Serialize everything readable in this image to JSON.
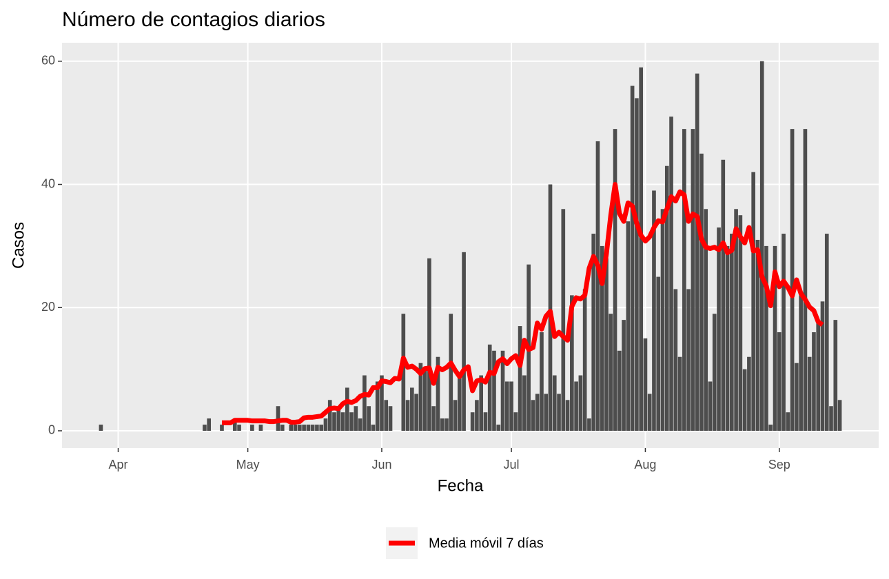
{
  "chart_data": {
    "type": "bar",
    "title": "Número de contagios diarios",
    "x_label": "Fecha",
    "y_label": "Casos",
    "xlim": [
      78,
      267
    ],
    "ylim": [
      -2.8,
      63
    ],
    "xticks": [
      {
        "value": 91,
        "label": "Apr"
      },
      {
        "value": 121,
        "label": "May"
      },
      {
        "value": 152,
        "label": "Jun"
      },
      {
        "value": 182,
        "label": "Jul"
      },
      {
        "value": 213,
        "label": "Aug"
      },
      {
        "value": 244,
        "label": "Sep"
      }
    ],
    "yticks": [
      0,
      20,
      40,
      60
    ],
    "grid": true,
    "legend": "bottom",
    "series": [
      {
        "type": "bar",
        "color": "#4d4d4d",
        "x": [
          87,
          111,
          112,
          115,
          118,
          119,
          122,
          124,
          128,
          129,
          131,
          132,
          133,
          134,
          135,
          136,
          137,
          138,
          139,
          140,
          141,
          142,
          143,
          144,
          145,
          146,
          147,
          148,
          149,
          150,
          151,
          152,
          153,
          154,
          155,
          156,
          157,
          158,
          159,
          160,
          161,
          162,
          163,
          164,
          165,
          166,
          167,
          168,
          169,
          170,
          171,
          172,
          173,
          174,
          175,
          176,
          177,
          178,
          179,
          180,
          181,
          182,
          183,
          184,
          185,
          186,
          187,
          188,
          189,
          190,
          191,
          192,
          193,
          194,
          195,
          196,
          197,
          198,
          199,
          200,
          201,
          202,
          203,
          204,
          205,
          206,
          207,
          208,
          209,
          210,
          211,
          212,
          213,
          214,
          215,
          216,
          217,
          218,
          219,
          220,
          221,
          222,
          223,
          224,
          225,
          226,
          227,
          228,
          229,
          230,
          231,
          232,
          233,
          234,
          235,
          236,
          237,
          238,
          239,
          240,
          241,
          242,
          243,
          244,
          245,
          246,
          247,
          248,
          249,
          250,
          251,
          252,
          253,
          254,
          255,
          256,
          257,
          258
        ],
        "values": [
          1,
          1,
          2,
          1,
          2,
          1,
          1,
          1,
          4,
          1,
          1,
          1,
          1,
          1,
          1,
          1,
          1,
          1,
          2,
          5,
          3,
          4,
          3,
          7,
          3,
          4,
          2,
          9,
          4,
          1,
          8,
          9,
          5,
          4,
          0,
          0,
          19,
          5,
          7,
          6,
          11,
          10,
          28,
          4,
          12,
          2,
          2,
          19,
          5,
          9,
          29,
          0,
          3,
          5,
          9,
          3,
          14,
          13,
          1,
          13,
          8,
          8,
          3,
          17,
          9,
          27,
          5,
          6,
          16,
          6,
          40,
          9,
          6,
          36,
          5,
          22,
          8,
          9,
          23,
          2,
          32,
          47,
          30,
          28,
          19,
          49,
          13,
          18,
          34,
          56,
          54,
          59,
          15,
          6,
          39,
          25,
          36,
          43,
          51,
          23,
          12,
          49,
          23,
          49,
          58,
          45,
          36,
          8,
          19,
          33,
          44,
          30,
          32,
          36,
          35,
          10,
          12,
          42,
          31,
          60,
          30,
          1,
          30,
          16,
          32,
          3,
          49,
          11,
          22,
          49,
          12,
          16,
          18,
          21,
          32,
          4,
          18,
          5
        ]
      },
      {
        "type": "line",
        "name": "Media móvil 7 días",
        "color": "#ff0000",
        "x": [
          115,
          116,
          117,
          118,
          119,
          120,
          121,
          122,
          123,
          124,
          125,
          126,
          127,
          128,
          129,
          130,
          131,
          132,
          133,
          134,
          135,
          136,
          137,
          138,
          139,
          140,
          141,
          142,
          143,
          144,
          145,
          146,
          147,
          148,
          149,
          150,
          151,
          152,
          153,
          154,
          155,
          156,
          157,
          158,
          159,
          160,
          161,
          162,
          163,
          164,
          165,
          166,
          167,
          168,
          169,
          170,
          171,
          172,
          173,
          174,
          175,
          176,
          177,
          178,
          179,
          180,
          181,
          182,
          183,
          184,
          185,
          186,
          187,
          188,
          189,
          190,
          191,
          192,
          193,
          194,
          195,
          196,
          197,
          198,
          199,
          200,
          201,
          202,
          203,
          204,
          205,
          206,
          207,
          208,
          209,
          210,
          211,
          212,
          213,
          214,
          215,
          216,
          217,
          218,
          219,
          220,
          221,
          222,
          223,
          224,
          225,
          226,
          227,
          228,
          229,
          230,
          231,
          232,
          233,
          234,
          235,
          236,
          237,
          238,
          239,
          240,
          241,
          242,
          243,
          244,
          245,
          246,
          247,
          248,
          249,
          250,
          251,
          252,
          253,
          254
        ],
        "values": [
          1.3,
          1.3,
          1.3,
          1.7,
          1.7,
          1.7,
          1.7,
          1.6,
          1.6,
          1.6,
          1.6,
          1.5,
          1.5,
          1.6,
          1.7,
          1.7,
          1.4,
          1.4,
          1.5,
          2.1,
          2.2,
          2.2,
          2.3,
          2.4,
          3.0,
          3.6,
          3.7,
          3.6,
          4.4,
          4.8,
          4.6,
          4.9,
          5.6,
          5.9,
          5.8,
          7.0,
          7.0,
          8.1,
          8.0,
          7.8,
          8.5,
          8.4,
          11.8,
          10.3,
          10.5,
          10.0,
          9.3,
          10.1,
          10.2,
          7.7,
          10.3,
          9.9,
          10.3,
          11.0,
          9.8,
          8.8,
          9.9,
          10.4,
          6.5,
          8.1,
          8.3,
          7.9,
          9.5,
          9.3,
          11.2,
          11.7,
          10.9,
          11.7,
          12.2,
          10.6,
          14.7,
          13.2,
          13.5,
          17.5,
          16.5,
          18.6,
          19.4,
          15.3,
          16.0,
          15.3,
          14.7,
          20.2,
          21.6,
          21.4,
          22.0,
          26.4,
          28.3,
          26.9,
          23.9,
          28.8,
          35.0,
          40.0,
          35.3,
          34.0,
          37.0,
          36.5,
          33.7,
          31.7,
          30.8,
          31.5,
          33.0,
          34.1,
          33.9,
          36.0,
          38.0,
          37.3,
          38.8,
          38.3,
          34.0,
          35.2,
          34.8,
          31.1,
          29.8,
          29.6,
          29.8,
          29.4,
          30.5,
          28.9,
          29.3,
          32.8,
          31.5,
          30.5,
          33.0,
          29.2,
          29.4,
          25.0,
          23.5,
          20.3,
          25.8,
          23.4,
          24.3,
          23.3,
          21.9,
          24.5,
          22.3,
          21.3,
          20.1,
          19.5,
          17.7,
          17.2
        ]
      }
    ]
  }
}
